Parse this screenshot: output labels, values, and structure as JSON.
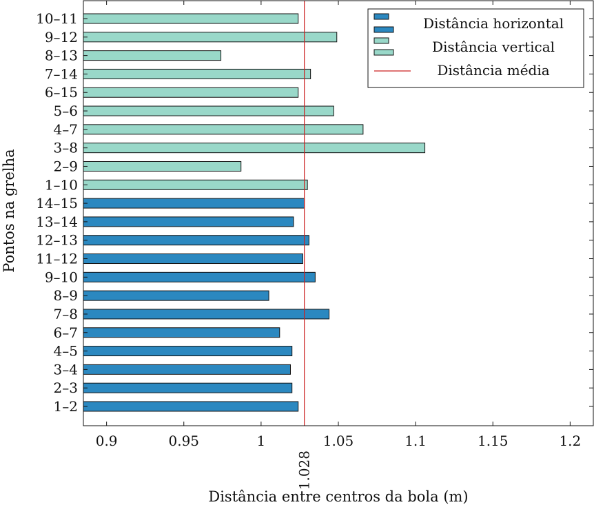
{
  "chart_data": {
    "type": "bar",
    "orientation": "horizontal",
    "xlabel": "Distância entre centros da bola (m)",
    "ylabel": "Pontos na grelha",
    "xlim": [
      0.885,
      1.215
    ],
    "xticks": [
      "0.9",
      "0.95",
      "1",
      "1.05",
      "1.1",
      "1.15",
      "1.2"
    ],
    "xtick_values": [
      0.9,
      0.95,
      1.0,
      1.05,
      1.1,
      1.15,
      1.2
    ],
    "categories": [
      "1–2",
      "2–3",
      "3–4",
      "4–5",
      "6–7",
      "7–8",
      "8–9",
      "9–10",
      "11–12",
      "12–13",
      "13–14",
      "14–15",
      "1–10",
      "2–9",
      "3–8",
      "4–7",
      "5–6",
      "6–15",
      "7–14",
      "8–13",
      "9–12",
      "10–11"
    ],
    "series": [
      {
        "name": "Distância horizontal",
        "color": "#2b88c0",
        "values": [
          1.024,
          1.02,
          1.019,
          1.02,
          1.012,
          1.044,
          1.005,
          1.035,
          1.027,
          1.031,
          1.021,
          1.028,
          null,
          null,
          null,
          null,
          null,
          null,
          null,
          null,
          null,
          null
        ]
      },
      {
        "name": "Distância vertical",
        "color": "#99d8c9",
        "values": [
          null,
          null,
          null,
          null,
          null,
          null,
          null,
          null,
          null,
          null,
          null,
          null,
          1.03,
          0.987,
          1.106,
          1.066,
          1.047,
          1.024,
          1.032,
          0.974,
          1.049,
          1.024
        ]
      }
    ],
    "reference_line": {
      "name": "Distância média",
      "value": 1.028,
      "label": "1.028",
      "color": "#cc2222"
    },
    "legend": "top-right",
    "grid": false
  }
}
